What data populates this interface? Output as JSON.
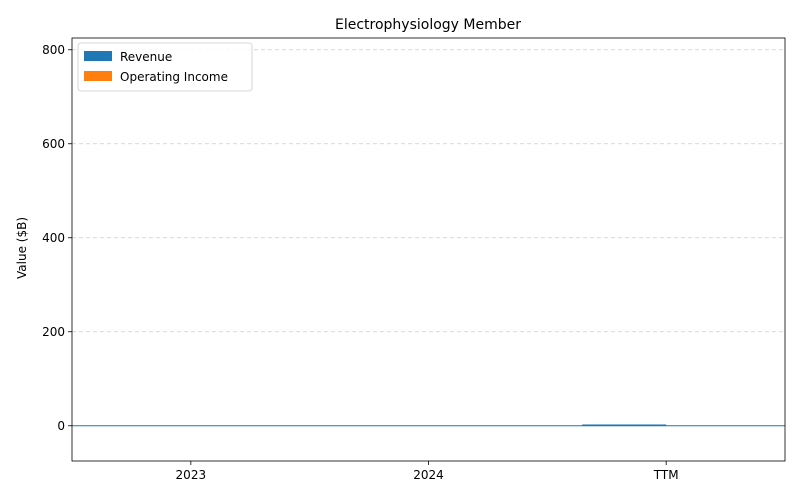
{
  "chart_data": {
    "type": "bar",
    "title": "Electrophysiology Member",
    "xlabel": "",
    "ylabel": "Value ($B)",
    "categories": [
      "2023",
      "2024",
      "TTM"
    ],
    "series": [
      {
        "name": "Revenue",
        "values": [
          0,
          0,
          2.7
        ],
        "color": "#1f77b4"
      },
      {
        "name": "Operating Income",
        "values": [
          0,
          0,
          0
        ],
        "color": "#ff7f0e"
      }
    ],
    "ylim": [
      -75,
      825
    ],
    "yticks": [
      0,
      200,
      400,
      600,
      800
    ],
    "grid": "y-dashed",
    "legend": "top-left",
    "zero_line": true
  }
}
